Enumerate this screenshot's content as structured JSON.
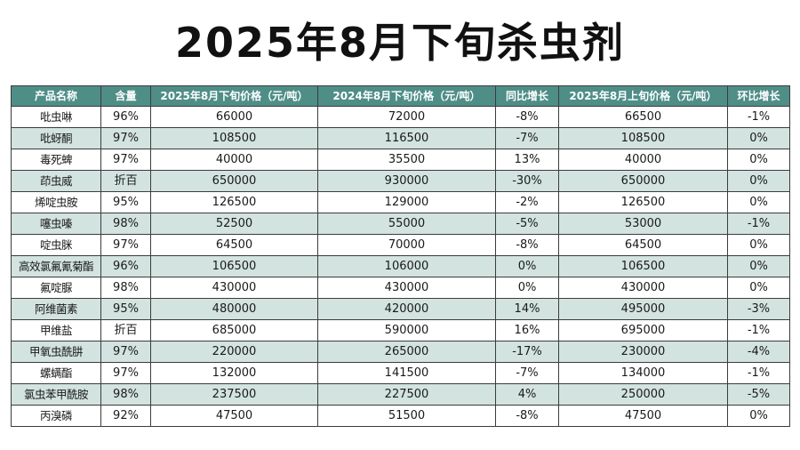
{
  "title": "2025年8月下旬杀虫剂",
  "colors": {
    "header_bg": "#4e8e87",
    "header_text": "#ffffff",
    "row_alt": "#d2e3e0",
    "row_plain": "#ffffff",
    "border": "#3c3c3c"
  },
  "table": {
    "headers": [
      "产品名称",
      "含量",
      "2025年8月下旬价格（元/吨）",
      "2024年8月下旬价格（元/吨）",
      "同比增长",
      "2025年8月上旬价格（元/吨）",
      "环比增长"
    ],
    "rows": [
      [
        "吡虫啉",
        "96%",
        "66000",
        "72000",
        "-8%",
        "66500",
        "-1%"
      ],
      [
        "吡蚜酮",
        "97%",
        "108500",
        "116500",
        "-7%",
        "108500",
        "0%"
      ],
      [
        "毒死蜱",
        "97%",
        "40000",
        "35500",
        "13%",
        "40000",
        "0%"
      ],
      [
        "茚虫威",
        "折百",
        "650000",
        "930000",
        "-30%",
        "650000",
        "0%"
      ],
      [
        "烯啶虫胺",
        "95%",
        "126500",
        "129000",
        "-2%",
        "126500",
        "0%"
      ],
      [
        "噻虫嗪",
        "98%",
        "52500",
        "55000",
        "-5%",
        "53000",
        "-1%"
      ],
      [
        "啶虫脒",
        "97%",
        "64500",
        "70000",
        "-8%",
        "64500",
        "0%"
      ],
      [
        "高效氯氟氰菊酯",
        "96%",
        "106500",
        "106000",
        "0%",
        "106500",
        "0%"
      ],
      [
        "氟啶脲",
        "98%",
        "430000",
        "430000",
        "0%",
        "430000",
        "0%"
      ],
      [
        "阿维菌素",
        "95%",
        "480000",
        "420000",
        "14%",
        "495000",
        "-3%"
      ],
      [
        "甲维盐",
        "折百",
        "685000",
        "590000",
        "16%",
        "695000",
        "-1%"
      ],
      [
        "甲氧虫酰肼",
        "97%",
        "220000",
        "265000",
        "-17%",
        "230000",
        "-4%"
      ],
      [
        "螺螨酯",
        "97%",
        "132000",
        "141500",
        "-7%",
        "134000",
        "-1%"
      ],
      [
        "氯虫苯甲酰胺",
        "98%",
        "237500",
        "227500",
        "4%",
        "250000",
        "-5%"
      ],
      [
        "丙溴磷",
        "92%",
        "47500",
        "51500",
        "-8%",
        "47500",
        "0%"
      ]
    ]
  }
}
